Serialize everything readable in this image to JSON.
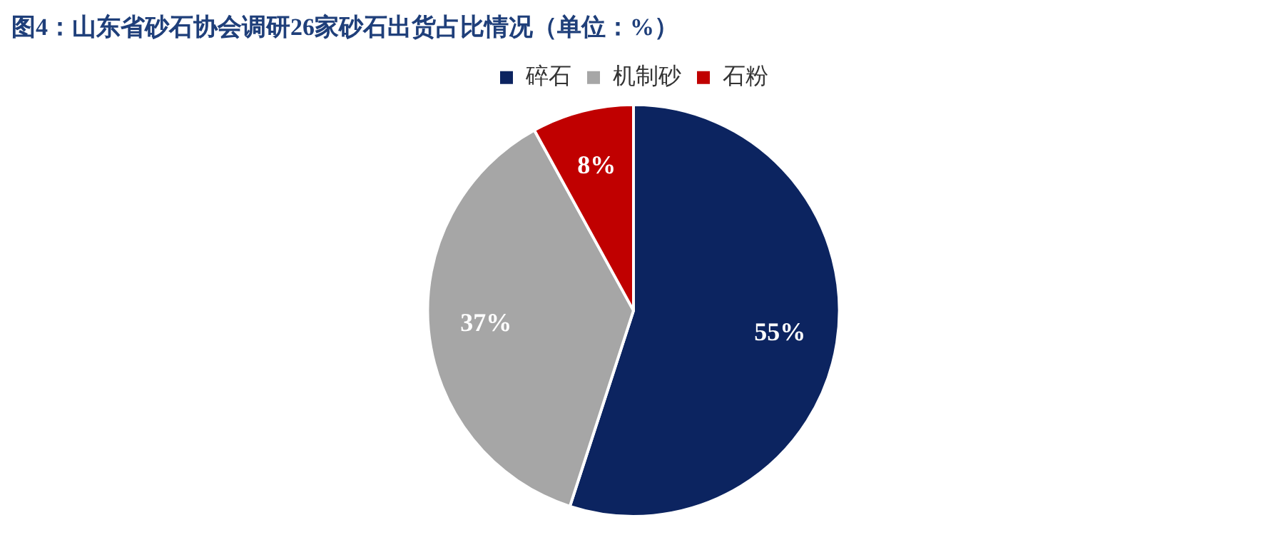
{
  "chart_data": {
    "type": "pie",
    "title": "图4：山东省砂石协会调研26家砂石出货占比情况（单位：%）",
    "categories": [
      "碎石",
      "机制砂",
      "石粉"
    ],
    "values": [
      55,
      37,
      8
    ],
    "colors": [
      "#0c2460",
      "#a6a6a6",
      "#c00000"
    ],
    "value_labels": [
      "55%",
      "37%",
      "8%"
    ],
    "legend": "top"
  }
}
